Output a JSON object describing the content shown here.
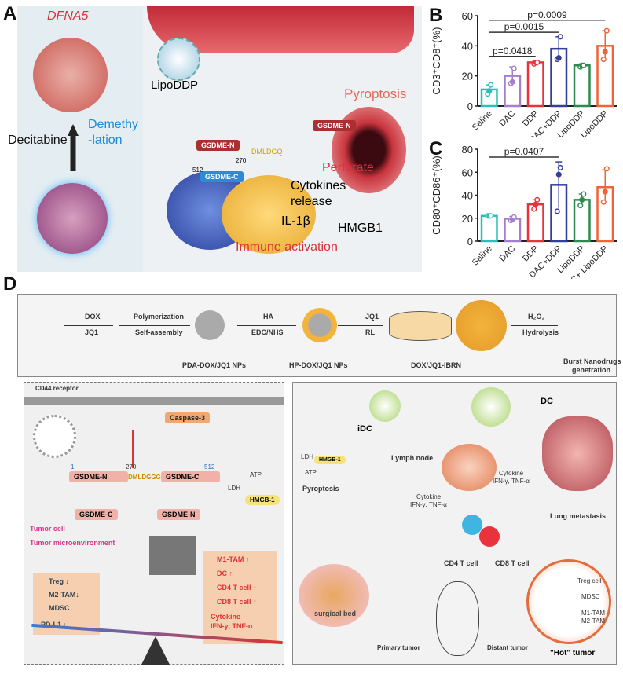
{
  "panels": {
    "a": "A",
    "b": "B",
    "c": "C",
    "d": "D"
  },
  "panel_a": {
    "gene": "DFNA5",
    "drug": "Decitabine",
    "demethylation_1": "Demethy",
    "demethylation_2": "-lation",
    "lipo": "LipoDDP",
    "pyroptosis": "Pyroptosis",
    "gsdme_n": "GSDME-N",
    "gsdme_n2": "GSDME-N",
    "gsdme_c": "GSDME-C",
    "site_270": "270",
    "site_512": "512",
    "motif": "DMLDGQ",
    "perforate": "Perforate",
    "cytokines": "Cytokines",
    "release": "release",
    "il1b": "IL-1β",
    "hmgb1": "HMGB1",
    "immune": "Immune activation"
  },
  "chart_data": [
    {
      "type": "bar",
      "ylabel": "CD3⁺CD8⁺(%)",
      "ylim": [
        0,
        60
      ],
      "yticks": [
        0,
        20,
        40,
        60
      ],
      "categories": [
        "Saline",
        "DAC",
        "DDP",
        "DAC+DDP",
        "LipoDDP",
        "DAC+ LipoDDP"
      ],
      "values": [
        11,
        20,
        29,
        38,
        27,
        40
      ],
      "errors": [
        3,
        6,
        1,
        8,
        1,
        10
      ],
      "points": [
        [
          8,
          10,
          14
        ],
        [
          15,
          16,
          25
        ],
        [
          28,
          29,
          29
        ],
        [
          31,
          32,
          46
        ],
        [
          26,
          27,
          27
        ],
        [
          31,
          36,
          50
        ]
      ],
      "colors": [
        "#2bbfb7",
        "#a57fcf",
        "#e8323c",
        "#343f9a",
        "#2e8a4e",
        "#f0643a"
      ],
      "annotations": [
        {
          "text": "p=0.0418",
          "from": 0,
          "to": 2
        },
        {
          "text": "p=0.0015",
          "from": 0,
          "to": 3
        },
        {
          "text": "p=0.0009",
          "from": 0,
          "to": 5
        }
      ]
    },
    {
      "type": "bar",
      "ylabel": "CD80⁺CD86⁺(%)",
      "ylim": [
        0,
        80
      ],
      "yticks": [
        0,
        20,
        40,
        60,
        80
      ],
      "categories": [
        "Saline",
        "DAC",
        "DDP",
        "DAC+DDP",
        "LipoDDP",
        "DAC+ LipoDDP"
      ],
      "values": [
        22,
        19.5,
        32,
        49,
        36,
        47
      ],
      "errors": [
        1,
        2,
        4,
        20,
        5,
        15
      ],
      "points": [
        [
          22,
          22,
          22
        ],
        [
          18,
          19,
          21
        ],
        [
          28,
          32,
          36
        ],
        [
          26,
          58,
          64
        ],
        [
          31,
          36,
          41
        ],
        [
          34,
          43,
          63
        ]
      ],
      "colors": [
        "#2bbfb7",
        "#a57fcf",
        "#e8323c",
        "#343f9a",
        "#2e8a4e",
        "#f0643a"
      ],
      "annotations": [
        {
          "text": "p=0.0407",
          "from": 0,
          "to": 3
        }
      ]
    }
  ],
  "panel_d": {
    "top": {
      "dox": "DOX",
      "jq1": "JQ1",
      "polymerization": "Polymerization",
      "self_assembly": "Self-assembly",
      "pda": "PDA-DOX/JQ1 NPs",
      "ha": "HA",
      "edc": "EDC/NHS",
      "hp": "HP-DOX/JQ1 NPs",
      "jq1b": "JQ1",
      "rl": "RL",
      "ibrn": "DOX/JQ1-IBRN",
      "h2o2": "H₂O₂",
      "hydrolysis": "Hydrolysis",
      "burst": "Burst Nanodrugs",
      "burst2": "genetration"
    },
    "left": {
      "cd44": "CD44 receptor",
      "caspase": "Caspase-3",
      "n1": "1",
      "n270": "270",
      "n512": "512",
      "gn": "GSDME-N",
      "motif": "DMLDGGG",
      "gc": "GSDME-C",
      "gc2": "GSDME-C",
      "gn2": "GSDME-N",
      "ldh": "LDH",
      "atp": "ATP",
      "hmgb": "HMGB-1",
      "tumor_cell": "Tumor cell",
      "tme": "Tumor microenvironment",
      "down": [
        "Treg ↓",
        "M2-TAM↓",
        "MDSC↓",
        "PD-L1 ↓"
      ],
      "up": [
        "M1-TAM ↑",
        "DC ↑",
        "CD4 T cell ↑",
        "CD8 T cell ↑",
        "Cytokine",
        "IFN-γ, TNF-α"
      ]
    },
    "right": {
      "idc": "iDC",
      "dc": "DC",
      "ldh": "LDH",
      "atp": "ATP",
      "hmgb": "HMGB-1",
      "pyroptosis": "Pyroptosis",
      "lymph": "Lymph node",
      "cyt1": "Cytokine",
      "cyt1b": "IFN-γ, TNF-α",
      "cyt2": "Cytokine",
      "cyt2b": "IFN-γ, TNF-α",
      "lung": "Lung metastasis",
      "cd4": "CD4 T cell",
      "cd8": "CD8 T cell",
      "surgical": "surgical bed",
      "primary": "Primary tumor",
      "distant": "Distant tumor",
      "hot": "\"Hot\" tumor",
      "legend": [
        "Treg cell",
        "MDSC",
        "M1-TAM",
        "M2-TAM"
      ]
    }
  }
}
